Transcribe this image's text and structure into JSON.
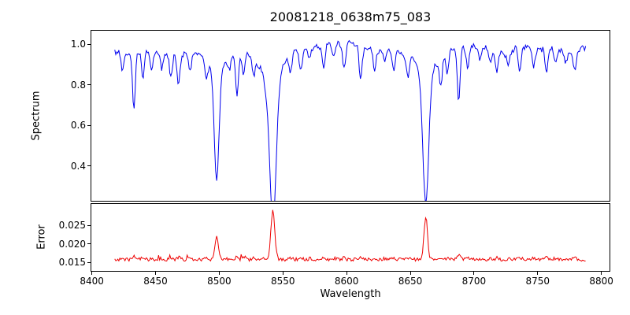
{
  "figure": {
    "title": "20081218_0638m75_083"
  },
  "chart_data": [
    {
      "type": "line",
      "title": "20081218_0638m75_083",
      "ylabel": "Spectrum",
      "series": [
        {
          "name": "spectrum",
          "color": "#0000ee"
        }
      ],
      "xlim": [
        8399,
        8807
      ],
      "ylim": [
        0.225,
        1.07
      ],
      "yticks": [
        {
          "value": 1.0,
          "label": "1.0"
        },
        {
          "value": 0.8,
          "label": "0.8"
        },
        {
          "value": 0.6,
          "label": "0.6"
        },
        {
          "value": 0.4,
          "label": "0.4"
        }
      ],
      "x_start": 8418,
      "x_end": 8788,
      "x_step": 0.8,
      "continuum": 0.97,
      "noise_amplitude": 0.022,
      "major_absorption_lines": [
        {
          "center": 8498.0,
          "depth": 0.56,
          "sigma": 1.9
        },
        {
          "center": 8542.1,
          "depth": 0.72,
          "sigma": 2.6
        },
        {
          "center": 8662.1,
          "depth": 0.66,
          "sigma": 2.3
        }
      ],
      "minor_absorption_lines": [
        [
          8424,
          0.1
        ],
        [
          8433,
          0.27
        ],
        [
          8440,
          0.13
        ],
        [
          8447,
          0.08
        ],
        [
          8455,
          0.07
        ],
        [
          8462,
          0.12
        ],
        [
          8468,
          0.14
        ],
        [
          8477,
          0.08
        ],
        [
          8490,
          0.09
        ],
        [
          8508,
          0.07
        ],
        [
          8514,
          0.22
        ],
        [
          8519,
          0.12
        ],
        [
          8527,
          0.08
        ],
        [
          8536,
          0.06
        ],
        [
          8556,
          0.09
        ],
        [
          8564,
          0.1
        ],
        [
          8571,
          0.06
        ],
        [
          8582,
          0.11
        ],
        [
          8590,
          0.07
        ],
        [
          8598,
          0.12
        ],
        [
          8611,
          0.16
        ],
        [
          8622,
          0.1
        ],
        [
          8630,
          0.06
        ],
        [
          8637,
          0.08
        ],
        [
          8648,
          0.1
        ],
        [
          8674,
          0.13
        ],
        [
          8679,
          0.1
        ],
        [
          8688,
          0.26
        ],
        [
          8695,
          0.1
        ],
        [
          8705,
          0.06
        ],
        [
          8713,
          0.08
        ],
        [
          8718,
          0.1
        ],
        [
          8727,
          0.06
        ],
        [
          8736,
          0.12
        ],
        [
          8747,
          0.08
        ],
        [
          8757,
          0.1
        ],
        [
          8764,
          0.07
        ],
        [
          8772,
          0.06
        ],
        [
          8779,
          0.08
        ]
      ],
      "grid": false,
      "legend": false
    },
    {
      "type": "line",
      "ylabel": "Error",
      "xlabel": "Wavelength",
      "series": [
        {
          "name": "error",
          "color": "#ee0000"
        }
      ],
      "xlim": [
        8399,
        8807
      ],
      "ylim": [
        0.0125,
        0.031
      ],
      "yticks": [
        {
          "value": 0.025,
          "label": "0.025"
        },
        {
          "value": 0.02,
          "label": "0.020"
        },
        {
          "value": 0.015,
          "label": "0.015"
        }
      ],
      "xticks": [
        {
          "value": 8400,
          "label": "8400"
        },
        {
          "value": 8450,
          "label": "8450"
        },
        {
          "value": 8500,
          "label": "8500"
        },
        {
          "value": 8550,
          "label": "8550"
        },
        {
          "value": 8600,
          "label": "8600"
        },
        {
          "value": 8650,
          "label": "8650"
        },
        {
          "value": 8700,
          "label": "8700"
        },
        {
          "value": 8750,
          "label": "8750"
        },
        {
          "value": 8800,
          "label": "8800"
        }
      ],
      "baseline": 0.0158,
      "noise_amplitude": 0.0009,
      "error_peaks": [
        {
          "center": 8498.0,
          "height": 0.0062,
          "sigma": 1.3
        },
        {
          "center": 8542.1,
          "height": 0.0135,
          "sigma": 1.5
        },
        {
          "center": 8662.1,
          "height": 0.0115,
          "sigma": 1.4
        }
      ],
      "minor_peak_scale": 0.0045,
      "grid": false,
      "legend": false
    }
  ]
}
